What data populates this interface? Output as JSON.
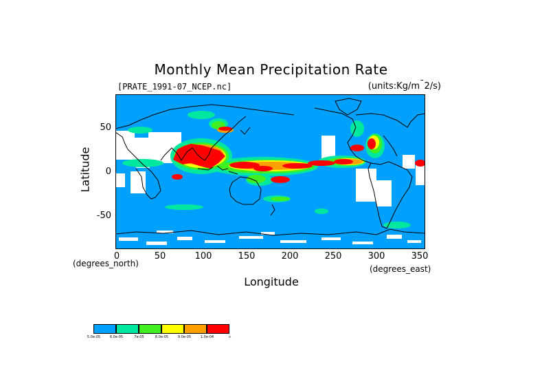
{
  "title": "Monthly Mean Precipitation Rate",
  "file_label": "[PRATE_1991-07_NCEP.nc]",
  "units_label": "(units:Kg/m^2/s)",
  "y_axis": {
    "label": "Latitude",
    "unit_label": "(degrees_north)",
    "ticks": [
      "50",
      "0",
      "-50"
    ]
  },
  "x_axis": {
    "label": "Longitude",
    "unit_label": "(degrees_east)",
    "ticks": [
      "0",
      "50",
      "100",
      "150",
      "200",
      "250",
      "300",
      "350"
    ]
  },
  "legend": {
    "colors": [
      "#00a0ff",
      "#00e8a0",
      "#40f020",
      "#ffff00",
      "#ffa000",
      "#ff0000"
    ],
    "labels": [
      "5.0e-05",
      "6.0e-05",
      "7e-05",
      "8.0e-05",
      "9.0e-05",
      "1.0e-04",
      "∞"
    ]
  },
  "colors": {
    "ocean_base": "#00a0ff",
    "missing": "#ffffff",
    "coast": "#000000"
  }
}
